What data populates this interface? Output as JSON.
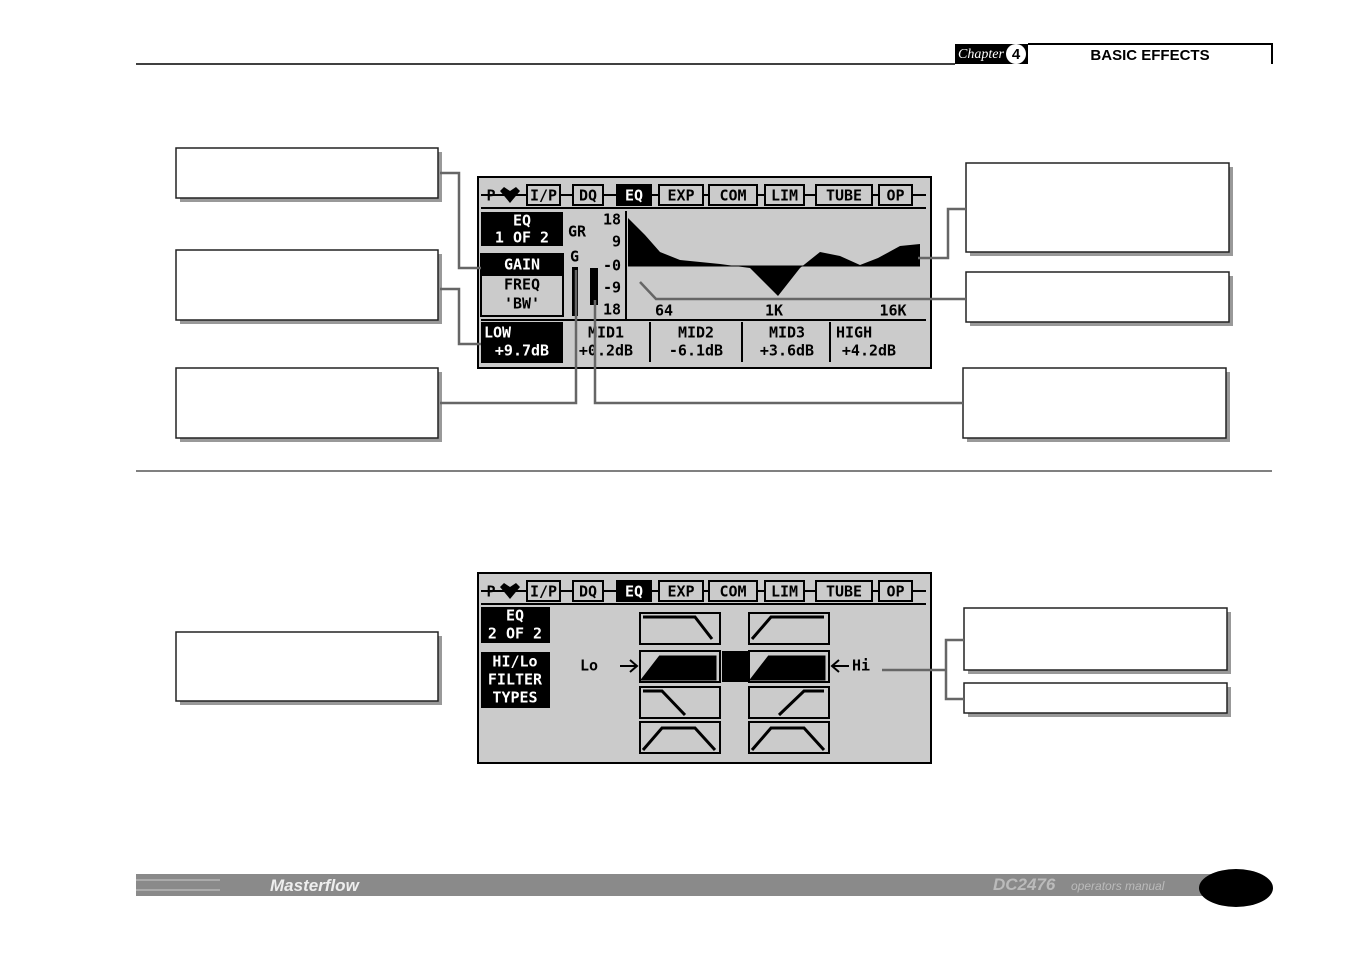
{
  "header": {
    "chapter_label": "Chapter",
    "chapter_number": "4",
    "section": "BASIC EFFECTS"
  },
  "screen1": {
    "tabs": [
      "P",
      "I/P",
      "DQ",
      "EQ",
      "EXP",
      "COM",
      "LIM",
      "TUBE",
      "OP"
    ],
    "page": [
      "EQ",
      "1 OF 2"
    ],
    "meter_labels": [
      "GR",
      "G"
    ],
    "scale": [
      "18",
      "9",
      "-0",
      "-9",
      "18"
    ],
    "params": [
      "GAIN",
      "FREQ",
      "'BW'"
    ],
    "freq_axis": [
      "64",
      "1K",
      "16K"
    ],
    "bands": [
      {
        "name": "LOW",
        "value": "+9.7dB"
      },
      {
        "name": "MID1",
        "value": "+0.2dB"
      },
      {
        "name": "MID2",
        "value": "-6.1dB"
      },
      {
        "name": "MID3",
        "value": "+3.6dB"
      },
      {
        "name": "HIGH",
        "value": "+4.2dB"
      }
    ]
  },
  "screen2": {
    "tabs": [
      "P",
      "I/P",
      "DQ",
      "EQ",
      "EXP",
      "COM",
      "LIM",
      "TUBE",
      "OP"
    ],
    "page": [
      "EQ",
      "2 OF 2"
    ],
    "label": [
      "HI/Lo",
      "FILTER",
      "TYPES"
    ],
    "lo": "Lo",
    "hi": "Hi"
  },
  "footer": {
    "brand": "Masterflow",
    "model": "DC2476",
    "manual": "operators manual"
  }
}
